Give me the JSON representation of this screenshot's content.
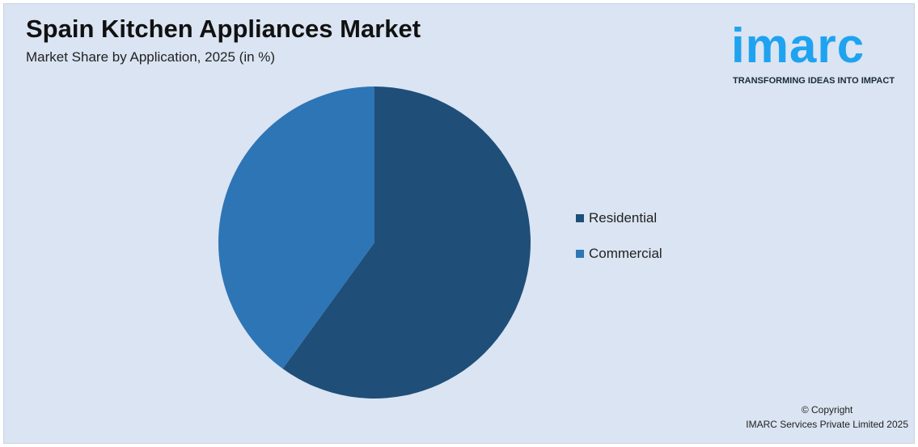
{
  "chart_data": {
    "type": "pie",
    "title": "Spain Kitchen Appliances Market",
    "subtitle": "Market Share by Application, 2025 (in %)",
    "categories": [
      "Residential",
      "Commercial"
    ],
    "values": [
      60,
      40
    ],
    "colors": [
      "#1f4e79",
      "#2e75b6"
    ],
    "legend_position": "right"
  },
  "logo": {
    "text": "imarc",
    "tagline": "TRANSFORMING IDEAS INTO IMPACT",
    "color": "#1fa3f0"
  },
  "footer": {
    "copyright": "© Copyright",
    "company": "IMARC Services Private Limited 2025"
  }
}
